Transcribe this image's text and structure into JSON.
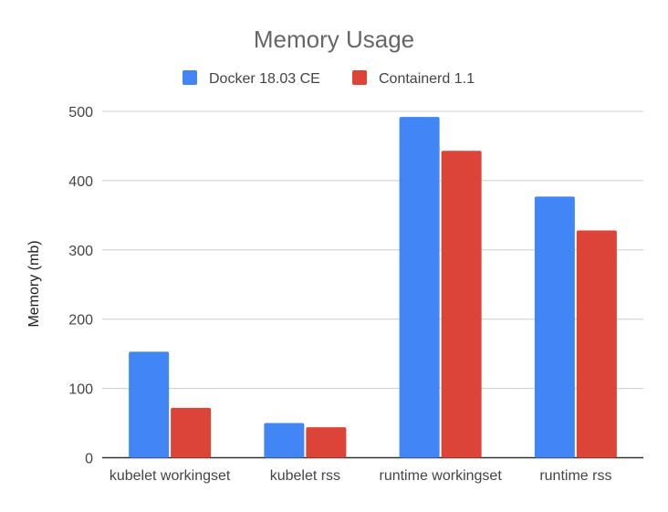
{
  "chart_data": {
    "type": "bar",
    "title": "Memory Usage",
    "xlabel": "",
    "ylabel": "Memory (mb)",
    "ylim": [
      0,
      500
    ],
    "yticks": [
      0,
      100,
      200,
      300,
      400,
      500
    ],
    "grid": true,
    "legend_position": "top",
    "categories": [
      "kubelet workingset",
      "kubelet rss",
      "runtime workingset",
      "runtime rss"
    ],
    "series": [
      {
        "name": "Docker 18.03 CE",
        "color": "#4285f4",
        "values": [
          153,
          50,
          492,
          377
        ]
      },
      {
        "name": "Containerd 1.1",
        "color": "#db4437",
        "values": [
          72,
          44,
          443,
          328
        ]
      }
    ]
  }
}
